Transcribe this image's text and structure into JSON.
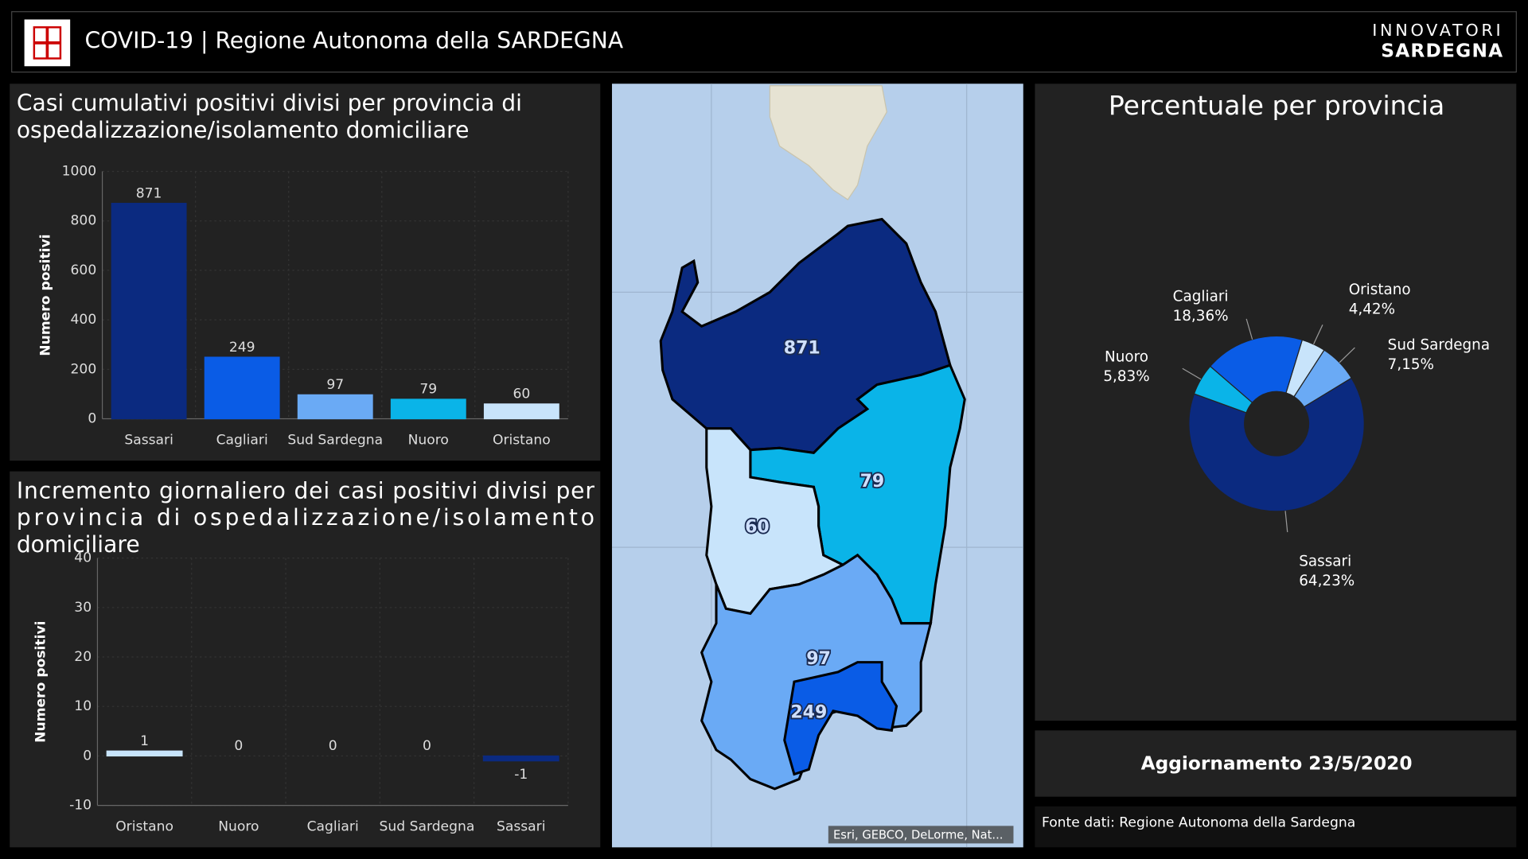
{
  "header": {
    "title": "COVID-19 | Regione Autonoma della SARDEGNA",
    "brand_top": "INNOVATORI",
    "brand_bottom": "SARDEGNA"
  },
  "chart_data": [
    {
      "type": "bar",
      "title": "Casi cumulativi positivi divisi per provincia di ospedalizzazione/isolamento domiciliare",
      "y_label": "Numero positivi",
      "categories": [
        "Sassari",
        "Cagliari",
        "Sud Sardegna",
        "Nuoro",
        "Oristano"
      ],
      "values": [
        871,
        249,
        97,
        79,
        60
      ],
      "colors": [
        "#0b2a80",
        "#0a5ce6",
        "#6aaaf5",
        "#0ab4e8",
        "#c8e4fb"
      ],
      "ylim": [
        0,
        1000
      ],
      "yticks": [
        0,
        200,
        400,
        600,
        800,
        1000
      ],
      "grid": true
    },
    {
      "type": "bar",
      "title": "Incremento giornaliero dei casi positivi divisi per provincia di ospedalizzazione/isolamento domiciliare",
      "y_label": "Numero positivi",
      "categories": [
        "Oristano",
        "Nuoro",
        "Cagliari",
        "Sud Sardegna",
        "Sassari"
      ],
      "values": [
        1,
        0,
        0,
        0,
        -1
      ],
      "colors": [
        "#c8e4fb",
        "#0ab4e8",
        "#0a5ce6",
        "#6aaaf5",
        "#0b2a80"
      ],
      "ylim": [
        -10,
        40
      ],
      "yticks": [
        -10,
        0,
        10,
        20,
        30,
        40
      ],
      "grid": true
    },
    {
      "type": "pie",
      "title": "Percentuale per provincia",
      "categories": [
        "Oristano",
        "Sud Sardegna",
        "Sassari",
        "Nuoro",
        "Cagliari"
      ],
      "values": [
        4.42,
        7.15,
        64.23,
        5.83,
        18.36
      ],
      "value_labels": [
        "4,42%",
        "7,15%",
        "64,23%",
        "5,83%",
        "18,36%"
      ],
      "colors": [
        "#c8e4fb",
        "#6aaaf5",
        "#0b2a80",
        "#0ab4e8",
        "#0a5ce6"
      ]
    }
  ],
  "map": {
    "labels": [
      871,
      79,
      60,
      97,
      249
    ],
    "attribution": "Esri, GEBCO, DeLorme, Nat..."
  },
  "update": "Aggiornamento 23/5/2020",
  "source": "Fonte dati: Regione Autonoma della Sardegna"
}
